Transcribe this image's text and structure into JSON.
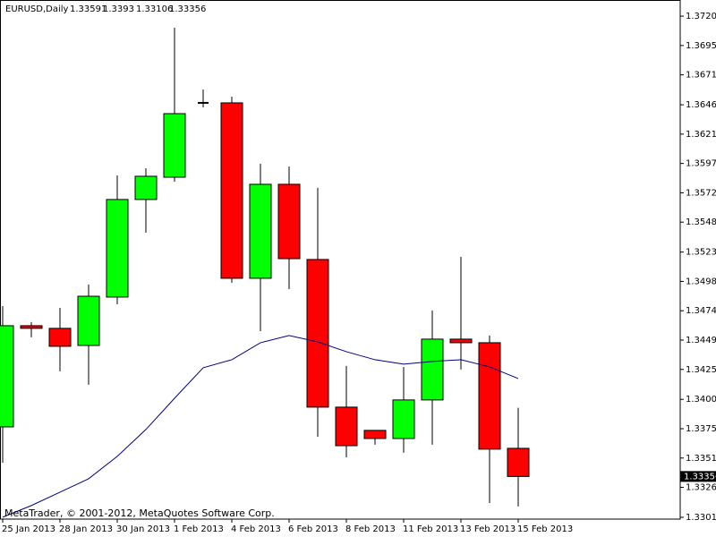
{
  "chart_data": {
    "type": "candlestick",
    "title": "EURUSD,Daily",
    "footer": "MetaTrader, © 2001-2012, MetaQuotes Software Corp.",
    "categories": [
      "25 Jan 2013",
      null,
      "28 Jan 2013",
      null,
      "30 Jan 2013",
      null,
      "1 Feb 2013",
      null,
      "4 Feb 2013",
      null,
      "6 Feb 2013",
      null,
      "8 Feb 2013",
      null,
      "11 Feb 2013",
      null,
      "13 Feb 2013",
      null,
      "15 Feb 2013"
    ],
    "open": [
      1.3377,
      1.34615,
      1.34593,
      1.3445,
      1.34854,
      1.35669,
      1.35855,
      1.36476,
      1.36476,
      1.35011,
      1.35796,
      1.35168,
      1.33935,
      1.33741,
      1.33673,
      1.33995,
      1.34503,
      1.34473,
      1.33591
    ],
    "high": [
      1.34779,
      1.34645,
      1.34764,
      1.34959,
      1.3587,
      1.3593,
      1.37103,
      1.36588,
      1.36528,
      1.35967,
      1.35945,
      1.35766,
      1.34279,
      1.33741,
      1.34271,
      1.34742,
      1.3519,
      1.34533,
      1.3393
    ],
    "low": [
      1.33471,
      1.34518,
      1.34234,
      1.34122,
      1.34794,
      1.35392,
      1.35818,
      1.36438,
      1.34974,
      1.3457,
      1.34921,
      1.33688,
      1.33516,
      1.33621,
      1.33554,
      1.33621,
      1.34249,
      1.33135,
      1.33106
    ],
    "close": [
      1.34615,
      1.34593,
      1.34443,
      1.34861,
      1.35669,
      1.35863,
      1.36386,
      1.36476,
      1.35011,
      1.35796,
      1.35175,
      1.33935,
      1.33613,
      1.33673,
      1.33995,
      1.34503,
      1.34473,
      1.33584,
      1.33356
    ],
    "series": [
      {
        "color": "#000080",
        "values": [
          1.33016,
          1.33113,
          1.33225,
          1.33337,
          1.33524,
          1.33748,
          1.34009,
          1.34264,
          1.34331,
          1.34473,
          1.34533,
          1.3448,
          1.34398,
          1.34331,
          1.34294,
          1.34316,
          1.34331,
          1.34271,
          1.34174
        ]
      }
    ],
    "up_color": "#00ff00",
    "down_color": "#ff0000",
    "ylim": [
      1.33,
      1.37335
    ],
    "yticks": [
      {
        "value": 1.372,
        "label": "1.37200"
      },
      {
        "value": 1.36955,
        "label": "1.36955"
      },
      {
        "value": 1.3671,
        "label": "1.36710"
      },
      {
        "value": 1.3646,
        "label": "1.36460"
      },
      {
        "value": 1.36215,
        "label": "1.36215"
      },
      {
        "value": 1.3597,
        "label": "1.35970"
      },
      {
        "value": 1.35725,
        "label": "1.35725"
      },
      {
        "value": 1.3548,
        "label": "1.35480"
      },
      {
        "value": 1.3523,
        "label": "1.35230"
      },
      {
        "value": 1.34985,
        "label": "1.34985"
      },
      {
        "value": 1.3474,
        "label": "1.34740"
      },
      {
        "value": 1.34495,
        "label": "1.34495"
      },
      {
        "value": 1.3425,
        "label": "1.34250"
      },
      {
        "value": 1.34,
        "label": "1.34000"
      },
      {
        "value": 1.33755,
        "label": "1.33755"
      },
      {
        "value": 1.3351,
        "label": "1.33510"
      },
      {
        "value": 1.33265,
        "label": "1.33265"
      },
      {
        "value": 1.33015,
        "label": "1.33015"
      }
    ]
  }
}
